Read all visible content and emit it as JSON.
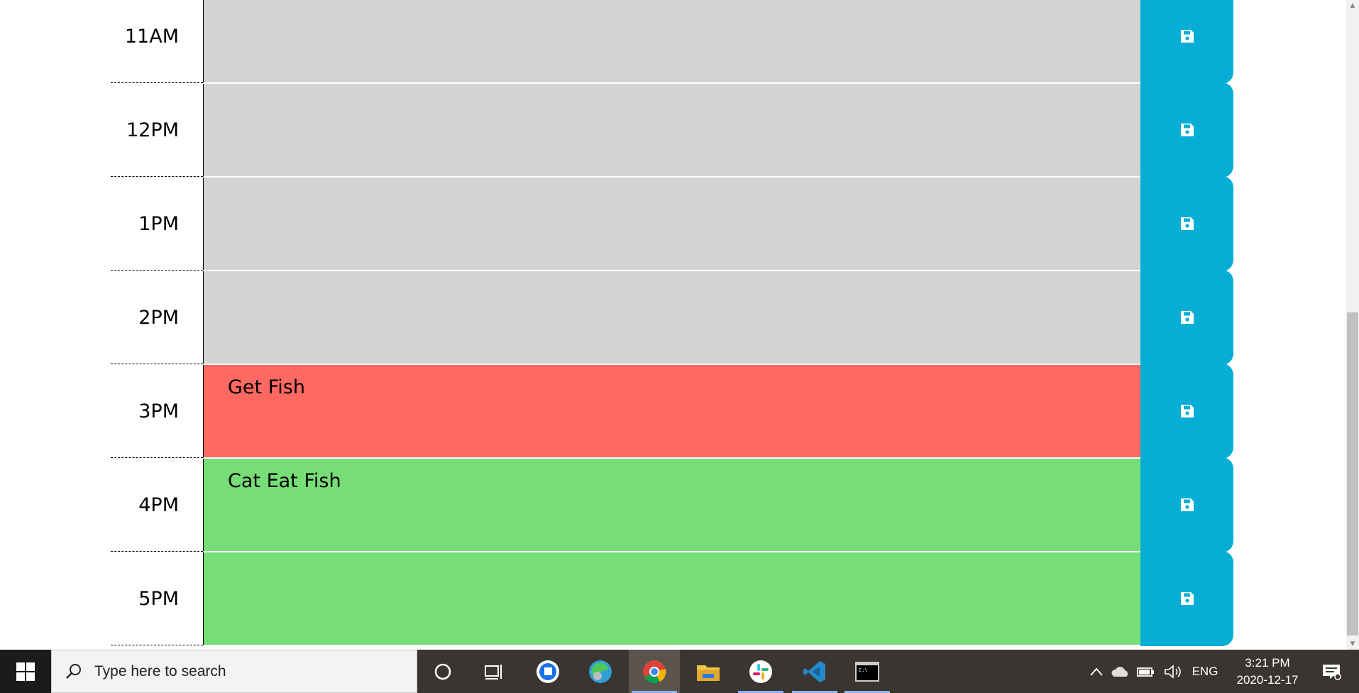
{
  "scheduler": {
    "rows": [
      {
        "hour": "11AM",
        "text": "",
        "state": "past"
      },
      {
        "hour": "12PM",
        "text": "",
        "state": "past"
      },
      {
        "hour": "1PM",
        "text": "",
        "state": "past"
      },
      {
        "hour": "2PM",
        "text": "",
        "state": "past"
      },
      {
        "hour": "3PM",
        "text": "Get Fish",
        "state": "present"
      },
      {
        "hour": "4PM",
        "text": "Cat Eat Fish",
        "state": "future"
      },
      {
        "hour": "5PM",
        "text": "",
        "state": "future"
      }
    ],
    "save_icon": "floppy-disk-icon"
  },
  "colors": {
    "past": "#d3d3d3",
    "present": "#ff6961",
    "future": "#77dd77",
    "save_button": "#06aed5"
  },
  "taskbar": {
    "search_placeholder": "Type here to search",
    "language": "ENG",
    "time": "3:21 PM",
    "date": "2020-12-17",
    "apps": [
      "cortana-icon",
      "task-view-icon",
      "greenshot-icon",
      "edge-icon",
      "chrome-icon",
      "file-explorer-icon",
      "slack-icon",
      "vscode-icon",
      "terminal-icon"
    ]
  }
}
